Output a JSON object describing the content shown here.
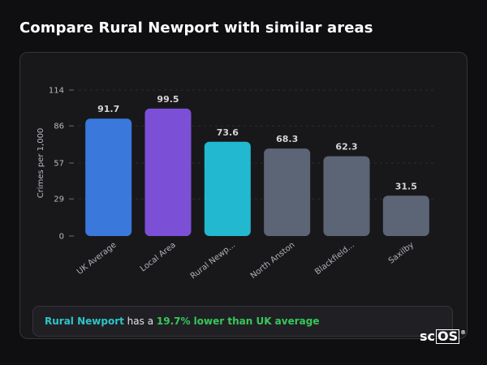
{
  "page": {
    "title": "Compare Rural Newport with similar areas"
  },
  "summary": {
    "area": "Rural Newport",
    "connector": " has a ",
    "stat": "19.7% lower than UK average"
  },
  "brand": {
    "main": "sc",
    "boxed": "OS",
    "mark": "®"
  },
  "colors": {
    "uk_average": "#3a78dc",
    "local_area": "#7b4fd6",
    "selected_area": "#22b8d0",
    "comparison": "#5b6576"
  },
  "chart_data": {
    "type": "bar",
    "categories": [
      "UK Average",
      "Local Area",
      "Rural Newp...",
      "North Anston",
      "Blackfield...",
      "Saxilby"
    ],
    "values": [
      91.7,
      99.5,
      73.6,
      68.3,
      62.3,
      31.5
    ],
    "value_labels": [
      "91.7",
      "99.5",
      "73.6",
      "68.3",
      "62.3",
      "31.5"
    ],
    "bar_colors": [
      "#3a78dc",
      "#7b4fd6",
      "#22b8d0",
      "#5b6576",
      "#5b6576",
      "#5b6576"
    ],
    "ylabel": "Crimes per 1,000",
    "yticks": [
      0,
      29,
      57,
      86,
      114
    ],
    "ylim": [
      0,
      114
    ],
    "grid": true
  }
}
